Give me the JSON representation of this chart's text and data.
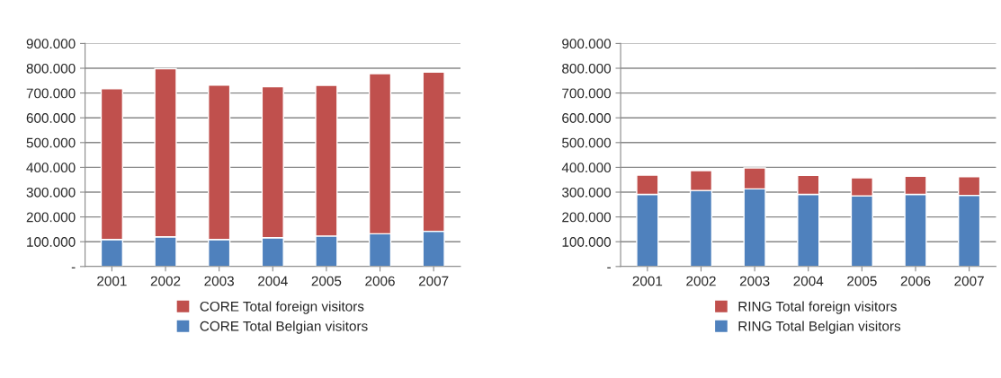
{
  "chart_data": [
    {
      "type": "bar",
      "stacked": true,
      "categories": [
        "2001",
        "2002",
        "2003",
        "2004",
        "2005",
        "2006",
        "2007"
      ],
      "series": [
        {
          "name": "CORE Total Belgian visitors",
          "color": "#4f81bd",
          "values": [
            109000,
            120000,
            109000,
            116000,
            123000,
            132000,
            142000
          ]
        },
        {
          "name": "CORE Total foreign visitors",
          "color": "#c0504d",
          "values": [
            608000,
            678000,
            623000,
            610000,
            608000,
            646000,
            642000
          ]
        }
      ],
      "ylim": [
        0,
        900000
      ],
      "yticks": [
        {
          "value": 0,
          "label": "-"
        },
        {
          "value": 100000,
          "label": "100.000"
        },
        {
          "value": 200000,
          "label": "200.000"
        },
        {
          "value": 300000,
          "label": "300.000"
        },
        {
          "value": 400000,
          "label": "400.000"
        },
        {
          "value": 500000,
          "label": "500.000"
        },
        {
          "value": 600000,
          "label": "600.000"
        },
        {
          "value": 700000,
          "label": "700.000"
        },
        {
          "value": 800000,
          "label": "800.000"
        },
        {
          "value": 900000,
          "label": "900.000"
        }
      ],
      "grid": "y",
      "legend": "bottom"
    },
    {
      "type": "bar",
      "stacked": true,
      "categories": [
        "2001",
        "2002",
        "2003",
        "2004",
        "2005",
        "2006",
        "2007"
      ],
      "series": [
        {
          "name": "RING Total Belgian visitors",
          "color": "#4f81bd",
          "values": [
            291000,
            307000,
            313000,
            291000,
            285000,
            291000,
            287000
          ]
        },
        {
          "name": "RING Total foreign visitors",
          "color": "#c0504d",
          "values": [
            78000,
            80000,
            85000,
            77000,
            73000,
            73000,
            75000
          ]
        }
      ],
      "ylim": [
        0,
        900000
      ],
      "yticks": [
        {
          "value": 0,
          "label": "-"
        },
        {
          "value": 100000,
          "label": "100.000"
        },
        {
          "value": 200000,
          "label": "200.000"
        },
        {
          "value": 300000,
          "label": "300.000"
        },
        {
          "value": 400000,
          "label": "400.000"
        },
        {
          "value": 500000,
          "label": "500.000"
        },
        {
          "value": 600000,
          "label": "600.000"
        },
        {
          "value": 700000,
          "label": "700.000"
        },
        {
          "value": 800000,
          "label": "800.000"
        },
        {
          "value": 900000,
          "label": "900.000"
        }
      ],
      "grid": "y",
      "legend": "bottom"
    }
  ]
}
